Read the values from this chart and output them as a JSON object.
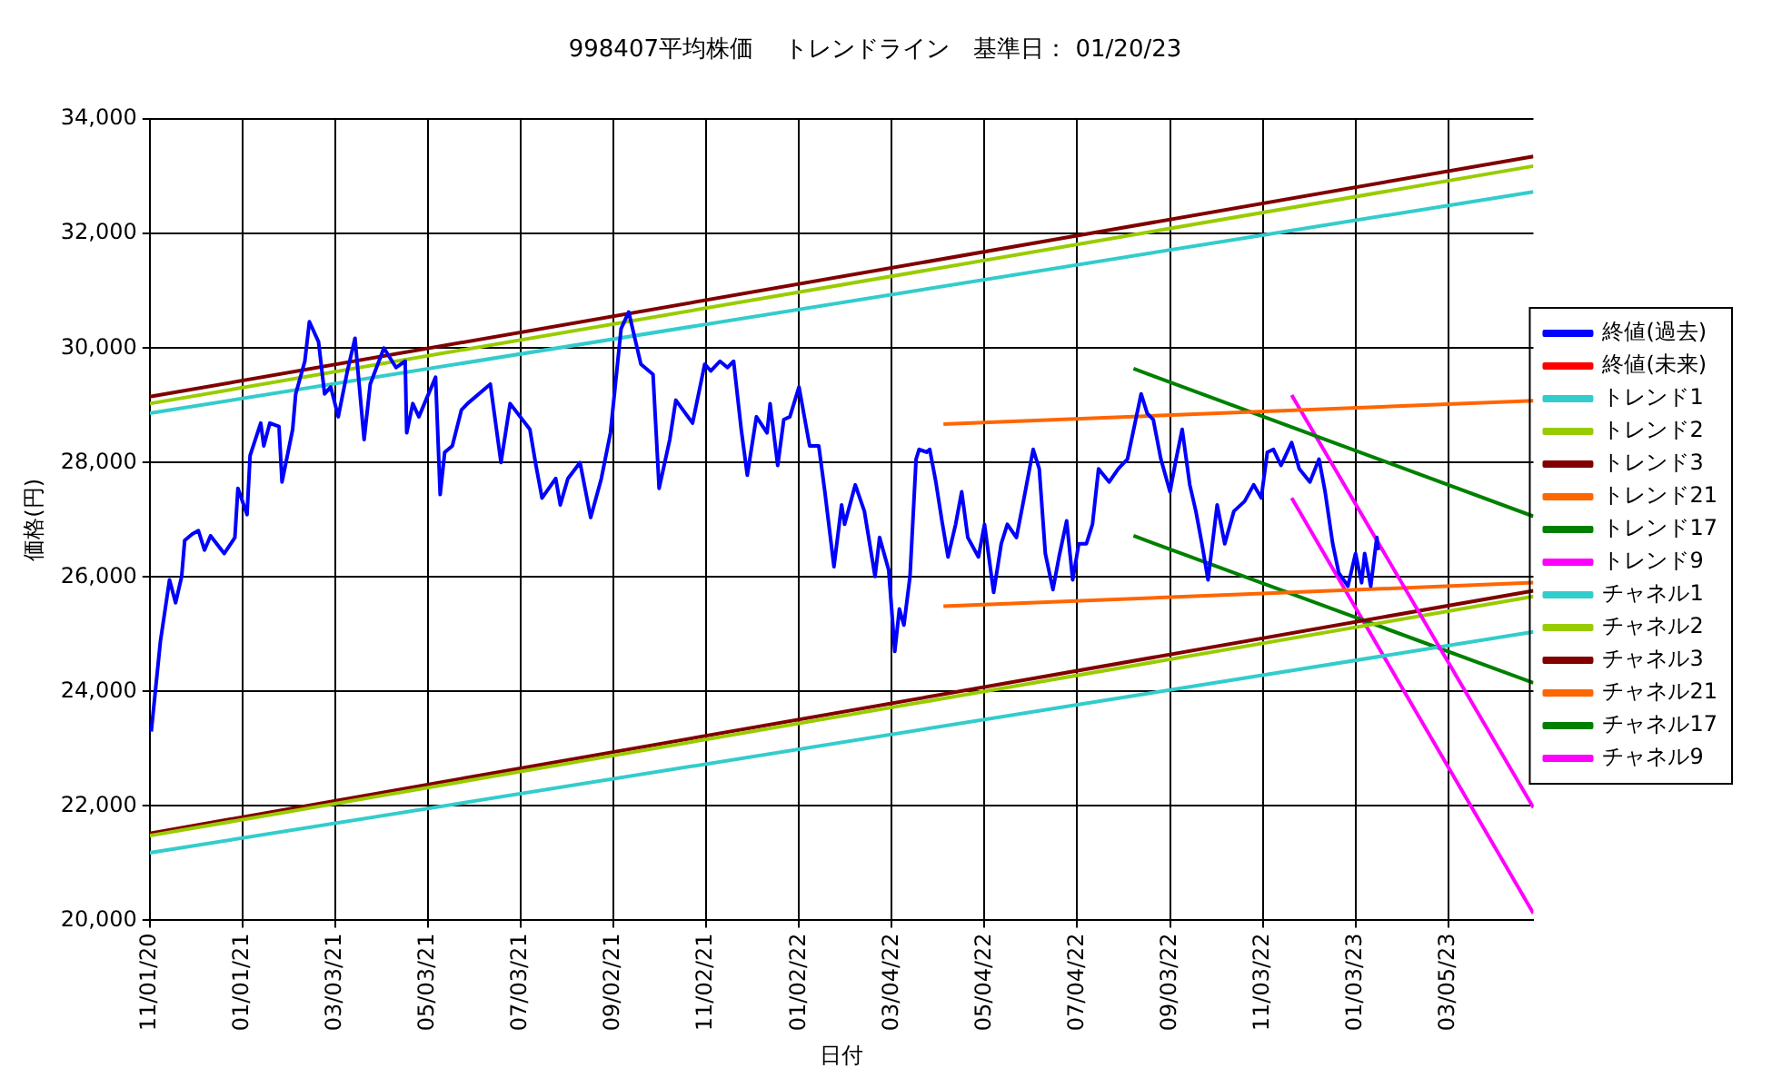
{
  "chart_data": {
    "type": "line",
    "title": "998407平均株価　 トレンドライン　基準日： 01/20/23",
    "xlabel": "日付",
    "ylabel": "価格(円)",
    "xlim": [
      "2020-11-01",
      "2023-04-30"
    ],
    "xticks": [
      {
        "value": "2020-11-01",
        "label": "11/01/20"
      },
      {
        "value": "2021-01-01",
        "label": "01/01/21"
      },
      {
        "value": "2021-03-03",
        "label": "03/03/21"
      },
      {
        "value": "2021-05-03",
        "label": "05/03/21"
      },
      {
        "value": "2021-07-03",
        "label": "07/03/21"
      },
      {
        "value": "2021-09-02",
        "label": "09/02/21"
      },
      {
        "value": "2021-11-02",
        "label": "11/02/21"
      },
      {
        "value": "2022-01-02",
        "label": "01/02/22"
      },
      {
        "value": "2022-03-04",
        "label": "03/04/22"
      },
      {
        "value": "2022-05-04",
        "label": "05/04/22"
      },
      {
        "value": "2022-07-04",
        "label": "07/04/22"
      },
      {
        "value": "2022-09-03",
        "label": "09/03/22"
      },
      {
        "value": "2022-11-03",
        "label": "11/03/22"
      },
      {
        "value": "2023-01-03",
        "label": "01/03/23"
      },
      {
        "value": "2023-03-05",
        "label": "03/05/23"
      }
    ],
    "ylim": [
      20000,
      34000
    ],
    "yticks": [
      {
        "value": 20000,
        "label": "20,000"
      },
      {
        "value": 22000,
        "label": "22,000"
      },
      {
        "value": 24000,
        "label": "24,000"
      },
      {
        "value": 26000,
        "label": "26,000"
      },
      {
        "value": 28000,
        "label": "28,000"
      },
      {
        "value": 30000,
        "label": "30,000"
      },
      {
        "value": 32000,
        "label": "32,000"
      },
      {
        "value": 34000,
        "label": "34,000"
      }
    ],
    "grid": true,
    "legend": "right",
    "marker": "none",
    "line_style": "solid",
    "series": [
      {
        "name": "終値(過去)",
        "color": "#0000ff",
        "x": [
          "2020-11-02",
          "2020-11-08",
          "2020-11-14",
          "2020-11-18",
          "2020-11-22",
          "2020-11-24",
          "2020-11-29",
          "2020-12-03",
          "2020-12-07",
          "2020-12-11",
          "2020-12-20",
          "2020-12-27",
          "2020-12-29",
          "2021-01-04",
          "2021-01-06",
          "2021-01-13",
          "2021-01-15",
          "2021-01-19",
          "2021-01-25",
          "2021-01-27",
          "2021-02-03",
          "2021-02-05",
          "2021-02-11",
          "2021-02-14",
          "2021-02-20",
          "2021-02-24",
          "2021-02-28",
          "2021-03-05",
          "2021-03-11",
          "2021-03-16",
          "2021-03-22",
          "2021-03-26",
          "2021-04-04",
          "2021-04-12",
          "2021-04-18",
          "2021-04-19",
          "2021-04-23",
          "2021-04-27",
          "2021-05-08",
          "2021-05-11",
          "2021-05-14",
          "2021-05-19",
          "2021-05-25",
          "2021-05-29",
          "2021-06-13",
          "2021-06-20",
          "2021-06-26",
          "2021-07-09",
          "2021-07-13",
          "2021-07-17",
          "2021-07-26",
          "2021-07-29",
          "2021-08-03",
          "2021-08-11",
          "2021-08-18",
          "2021-08-25",
          "2021-08-31",
          "2021-09-07",
          "2021-09-12",
          "2021-09-20",
          "2021-09-28",
          "2021-10-02",
          "2021-10-09",
          "2021-10-13",
          "2021-10-24",
          "2021-11-01",
          "2021-11-05",
          "2021-11-11",
          "2021-11-16",
          "2021-11-20",
          "2021-11-25",
          "2021-11-29",
          "2021-12-05",
          "2021-12-12",
          "2021-12-14",
          "2021-12-19",
          "2021-12-23",
          "2021-12-27",
          "2022-01-02",
          "2022-01-09",
          "2022-01-15",
          "2022-01-19",
          "2022-01-25",
          "2022-01-30",
          "2022-02-01",
          "2022-02-08",
          "2022-02-14",
          "2022-02-21",
          "2022-02-24",
          "2022-03-02",
          "2022-03-06",
          "2022-03-09",
          "2022-03-12",
          "2022-03-16",
          "2022-03-20",
          "2022-03-22",
          "2022-03-27",
          "2022-03-29",
          "2022-04-02",
          "2022-04-06",
          "2022-04-10",
          "2022-04-15",
          "2022-04-19",
          "2022-04-23",
          "2022-04-30",
          "2022-05-04",
          "2022-05-10",
          "2022-05-15",
          "2022-05-19",
          "2022-05-25",
          "2022-05-30",
          "2022-06-05",
          "2022-06-09",
          "2022-06-13",
          "2022-06-18",
          "2022-06-22",
          "2022-06-27",
          "2022-07-01",
          "2022-07-05",
          "2022-07-10",
          "2022-07-14",
          "2022-07-18",
          "2022-07-25",
          "2022-07-31",
          "2022-08-06",
          "2022-08-15",
          "2022-08-19",
          "2022-08-23",
          "2022-08-28",
          "2022-09-03",
          "2022-09-07",
          "2022-09-11",
          "2022-09-16",
          "2022-09-20",
          "2022-09-24",
          "2022-09-28",
          "2022-10-04",
          "2022-10-09",
          "2022-10-15",
          "2022-10-22",
          "2022-10-28",
          "2022-11-02",
          "2022-11-06",
          "2022-11-10",
          "2022-11-15",
          "2022-11-22",
          "2022-11-27",
          "2022-12-04",
          "2022-12-10",
          "2022-12-14",
          "2022-12-19",
          "2022-12-23",
          "2022-12-29",
          "2023-01-03",
          "2023-01-07",
          "2023-01-09",
          "2023-01-13",
          "2023-01-17",
          "2023-01-18"
        ],
        "values": [
          23300,
          24870,
          25950,
          25550,
          26010,
          26640,
          26750,
          26810,
          26470,
          26720,
          26410,
          26690,
          27550,
          27090,
          28120,
          28690,
          28290,
          28690,
          28630,
          27660,
          28580,
          29200,
          29770,
          30460,
          30110,
          29200,
          29320,
          28800,
          29600,
          30170,
          28400,
          29370,
          30000,
          29660,
          29770,
          28520,
          29030,
          28800,
          29490,
          27440,
          28180,
          28290,
          28920,
          29030,
          29370,
          28000,
          29030,
          28580,
          27950,
          27380,
          27720,
          27260,
          27720,
          28000,
          27040,
          27720,
          28520,
          30340,
          30630,
          29720,
          29540,
          27550,
          28400,
          29090,
          28690,
          29720,
          29600,
          29770,
          29660,
          29770,
          28580,
          27780,
          28800,
          28520,
          29030,
          27950,
          28750,
          28800,
          29320,
          28290,
          28290,
          27490,
          26180,
          27260,
          26920,
          27610,
          27150,
          26010,
          26690,
          26120,
          24700,
          25440,
          25160,
          26010,
          28060,
          28230,
          28180,
          28230,
          27660,
          26980,
          26350,
          26920,
          27490,
          26690,
          26350,
          26920,
          25730,
          26580,
          26920,
          26690,
          27380,
          28230,
          27890,
          26410,
          25780,
          26350,
          26980,
          25950,
          26580,
          26580,
          26920,
          27890,
          27660,
          27890,
          28060,
          29200,
          28860,
          28750,
          28060,
          27490,
          28060,
          28580,
          27610,
          27150,
          26580,
          25950,
          27260,
          26580,
          27150,
          27320,
          27610,
          27380,
          28180,
          28230,
          27950,
          28350,
          27890,
          27660,
          28060,
          27490,
          26580,
          26070,
          25840,
          26410,
          25900,
          26410,
          25840,
          26690,
          26470
        ]
      },
      {
        "name": "終値(未来)",
        "color": "#ff0000"
      },
      {
        "name": "トレンド1",
        "color": "#33cccc",
        "x": [
          "2020-11-01",
          "2023-04-30"
        ],
        "values": [
          28860,
          32730
        ]
      },
      {
        "name": "トレンド2",
        "color": "#99cc00",
        "x": [
          "2020-11-01",
          "2023-04-30"
        ],
        "values": [
          29030,
          33180
        ]
      },
      {
        "name": "トレンド3",
        "color": "#800000",
        "x": [
          "2020-11-01",
          "2023-04-30"
        ],
        "values": [
          29150,
          33350
        ]
      },
      {
        "name": "トレンド21",
        "color": "#ff6600",
        "x": [
          "2022-04-07",
          "2023-04-30"
        ],
        "values": [
          28670,
          29080
        ]
      },
      {
        "name": "トレンド17",
        "color": "#008000",
        "x": [
          "2022-08-10",
          "2023-04-30"
        ],
        "values": [
          29640,
          27060
        ]
      },
      {
        "name": "トレンド9",
        "color": "#ff00ff",
        "x": [
          "2022-11-22",
          "2023-04-30"
        ],
        "values": [
          29180,
          21970
        ]
      },
      {
        "name": "チャネル1",
        "color": "#33cccc",
        "x": [
          "2020-11-01",
          "2023-04-30"
        ],
        "values": [
          21180,
          25040
        ]
      },
      {
        "name": "チャネル2",
        "color": "#99cc00",
        "x": [
          "2020-11-01",
          "2023-04-30"
        ],
        "values": [
          21480,
          25660
        ]
      },
      {
        "name": "チャネル3",
        "color": "#800000",
        "x": [
          "2020-11-01",
          "2023-04-30"
        ],
        "values": [
          21520,
          25760
        ]
      },
      {
        "name": "チャネル21",
        "color": "#ff6600",
        "x": [
          "2022-04-07",
          "2023-04-30"
        ],
        "values": [
          25490,
          25900
        ]
      },
      {
        "name": "チャネル17",
        "color": "#008000",
        "x": [
          "2022-08-10",
          "2023-04-30"
        ],
        "values": [
          26720,
          24150
        ]
      },
      {
        "name": "チャネル9",
        "color": "#ff00ff",
        "x": [
          "2022-11-22",
          "2023-04-30"
        ],
        "values": [
          27380,
          20120
        ]
      }
    ]
  }
}
